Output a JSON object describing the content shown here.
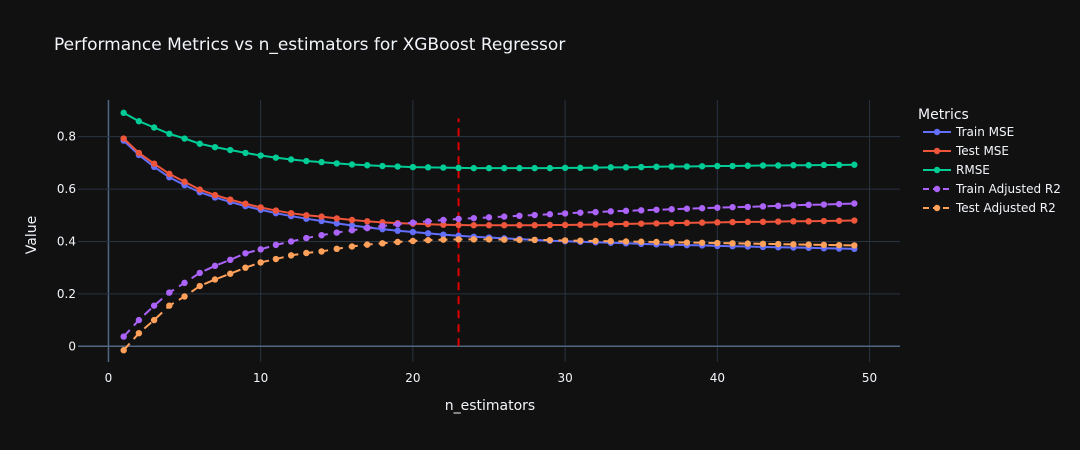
{
  "chart_data": {
    "type": "line",
    "title": "Performance Metrics vs n_estimators for XGBoost Regressor",
    "xlabel": "n_estimators",
    "ylabel": "Value",
    "xlim": [
      -2,
      52
    ],
    "ylim": [
      -0.06,
      0.94
    ],
    "x_ticks": [
      0,
      10,
      20,
      30,
      40,
      50
    ],
    "y_ticks": [
      0,
      0.2,
      0.4,
      0.6,
      0.8
    ],
    "y_tick_labels": [
      "0",
      "0.2",
      "0.4",
      "0.6",
      "0.8"
    ],
    "grid": true,
    "legend_title": "Metrics",
    "legend_position": "right",
    "vline": {
      "x": 23,
      "color": "#e00000",
      "style": "dashed",
      "y_range": [
        0,
        0.87
      ]
    },
    "x": [
      1,
      2,
      3,
      4,
      5,
      6,
      7,
      8,
      9,
      10,
      11,
      12,
      13,
      14,
      15,
      16,
      17,
      18,
      19,
      20,
      21,
      22,
      23,
      24,
      25,
      26,
      27,
      28,
      29,
      30,
      31,
      32,
      33,
      34,
      35,
      36,
      37,
      38,
      39,
      40,
      41,
      42,
      43,
      44,
      45,
      46,
      47,
      48,
      49
    ],
    "series": [
      {
        "name": "Train MSE",
        "color": "#636efa",
        "dash": "solid",
        "values": [
          0.785,
          0.73,
          0.685,
          0.645,
          0.615,
          0.588,
          0.568,
          0.551,
          0.535,
          0.521,
          0.508,
          0.497,
          0.487,
          0.478,
          0.469,
          0.461,
          0.454,
          0.447,
          0.441,
          0.436,
          0.431,
          0.426,
          0.422,
          0.418,
          0.415,
          0.412,
          0.409,
          0.406,
          0.403,
          0.401,
          0.399,
          0.397,
          0.395,
          0.393,
          0.391,
          0.389,
          0.388,
          0.386,
          0.385,
          0.383,
          0.382,
          0.381,
          0.379,
          0.378,
          0.377,
          0.376,
          0.374,
          0.373,
          0.372
        ]
      },
      {
        "name": "Test MSE",
        "color": "#ef553b",
        "dash": "solid",
        "values": [
          0.793,
          0.738,
          0.697,
          0.658,
          0.628,
          0.598,
          0.577,
          0.56,
          0.544,
          0.53,
          0.518,
          0.508,
          0.5,
          0.495,
          0.488,
          0.482,
          0.477,
          0.473,
          0.47,
          0.468,
          0.466,
          0.464,
          0.463,
          0.462,
          0.462,
          0.462,
          0.462,
          0.462,
          0.463,
          0.463,
          0.464,
          0.465,
          0.466,
          0.467,
          0.468,
          0.469,
          0.47,
          0.471,
          0.472,
          0.473,
          0.474,
          0.475,
          0.475,
          0.476,
          0.477,
          0.477,
          0.478,
          0.479,
          0.48
        ]
      },
      {
        "name": "RMSE",
        "color": "#00cc96",
        "dash": "solid",
        "values": [
          0.891,
          0.859,
          0.835,
          0.811,
          0.793,
          0.773,
          0.76,
          0.749,
          0.738,
          0.728,
          0.72,
          0.713,
          0.707,
          0.703,
          0.698,
          0.694,
          0.691,
          0.688,
          0.686,
          0.684,
          0.683,
          0.682,
          0.681,
          0.68,
          0.68,
          0.68,
          0.68,
          0.68,
          0.68,
          0.681,
          0.681,
          0.682,
          0.683,
          0.683,
          0.684,
          0.685,
          0.686,
          0.686,
          0.687,
          0.688,
          0.688,
          0.689,
          0.69,
          0.69,
          0.691,
          0.691,
          0.692,
          0.692,
          0.693
        ]
      },
      {
        "name": "Train Adjusted R2",
        "color": "#ab63fa",
        "dash": "dash",
        "values": [
          0.037,
          0.1,
          0.155,
          0.205,
          0.242,
          0.28,
          0.307,
          0.33,
          0.355,
          0.37,
          0.387,
          0.4,
          0.413,
          0.424,
          0.434,
          0.443,
          0.451,
          0.459,
          0.466,
          0.472,
          0.477,
          0.482,
          0.486,
          0.489,
          0.492,
          0.495,
          0.498,
          0.501,
          0.504,
          0.507,
          0.51,
          0.512,
          0.515,
          0.517,
          0.519,
          0.521,
          0.523,
          0.525,
          0.527,
          0.529,
          0.531,
          0.532,
          0.534,
          0.536,
          0.538,
          0.54,
          0.541,
          0.543,
          0.545
        ]
      },
      {
        "name": "Test Adjusted R2",
        "color": "#ffa15a",
        "dash": "dash",
        "values": [
          -0.015,
          0.05,
          0.1,
          0.155,
          0.19,
          0.23,
          0.255,
          0.277,
          0.3,
          0.32,
          0.333,
          0.347,
          0.356,
          0.362,
          0.372,
          0.381,
          0.388,
          0.393,
          0.398,
          0.402,
          0.405,
          0.407,
          0.408,
          0.408,
          0.408,
          0.407,
          0.406,
          0.406,
          0.405,
          0.404,
          0.403,
          0.402,
          0.401,
          0.4,
          0.399,
          0.398,
          0.397,
          0.396,
          0.395,
          0.394,
          0.393,
          0.392,
          0.391,
          0.39,
          0.389,
          0.388,
          0.387,
          0.386,
          0.385
        ]
      }
    ]
  }
}
